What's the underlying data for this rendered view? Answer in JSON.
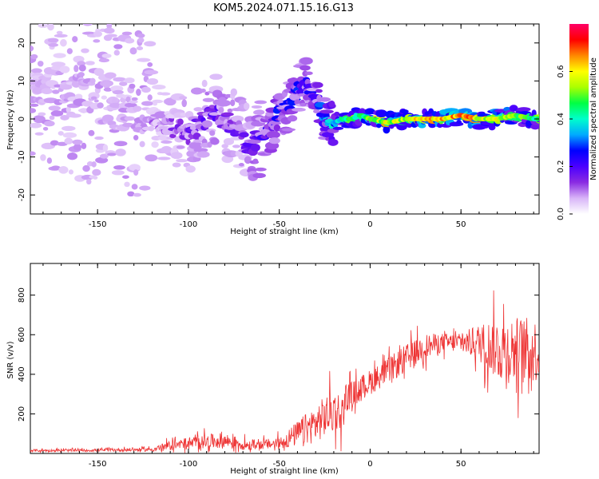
{
  "title": "KOM5.2024.071.15.16.G13",
  "chart_data": [
    {
      "type": "heatmap",
      "xlabel": "Height of straight line (km)",
      "ylabel": "Frequency (Hz)",
      "xlim": [
        -187,
        93
      ],
      "ylim": [
        -25,
        25
      ],
      "xticks": [
        -150,
        -100,
        -50,
        0,
        50
      ],
      "yticks": [
        -20,
        -10,
        0,
        10,
        20
      ],
      "colorbar": {
        "label": "Normalized spectral amplitude",
        "range": [
          0.0,
          0.8
        ],
        "ticks": [
          0.0,
          0.2,
          0.4,
          0.6
        ],
        "colormap": [
          "#ffffff",
          "#d8b4f8",
          "#8a2be2",
          "#4b00ff",
          "#0000ff",
          "#00aaff",
          "#00ffcc",
          "#00ff44",
          "#aaff00",
          "#ffff00",
          "#ff8800",
          "#ff0000",
          "#ff0066"
        ]
      },
      "ridge": {
        "x": [
          -185,
          -150,
          -120,
          -100,
          -85,
          -75,
          -70,
          -65,
          -55,
          -50,
          -45,
          -40,
          -35,
          -30,
          -25,
          -20,
          -15,
          -10,
          -5,
          0,
          10,
          20,
          30,
          40,
          50,
          60,
          70,
          80,
          90
        ],
        "freq": [
          8,
          5,
          0,
          -4,
          2,
          -2,
          -5,
          -7,
          -3,
          2,
          3,
          8,
          10,
          5,
          0,
          -1,
          0,
          0,
          1,
          0,
          -1,
          0,
          0,
          0,
          1,
          0,
          0,
          1,
          0
        ],
        "amplitude": [
          0.05,
          0.08,
          0.1,
          0.15,
          0.18,
          0.15,
          0.15,
          0.18,
          0.22,
          0.25,
          0.22,
          0.25,
          0.2,
          0.25,
          0.3,
          0.35,
          0.4,
          0.45,
          0.45,
          0.5,
          0.55,
          0.55,
          0.6,
          0.6,
          0.65,
          0.6,
          0.55,
          0.5,
          0.45
        ]
      }
    },
    {
      "type": "line",
      "xlabel": "Height of straight line (km)",
      "ylabel": "SNR (v/v)",
      "xlim": [
        -187,
        93
      ],
      "ylim": [
        0,
        960
      ],
      "xticks": [
        -150,
        -100,
        -50,
        0,
        50
      ],
      "yticks": [
        200,
        400,
        600,
        800
      ],
      "color": "#ee3333",
      "x": [
        -187,
        -160,
        -140,
        -120,
        -110,
        -100,
        -90,
        -80,
        -70,
        -60,
        -50,
        -40,
        -30,
        -20,
        -15,
        -14,
        -10,
        0,
        10,
        20,
        30,
        40,
        50,
        60,
        70,
        80,
        93
      ],
      "y": [
        15,
        15,
        18,
        20,
        40,
        50,
        60,
        65,
        45,
        45,
        50,
        100,
        150,
        220,
        200,
        280,
        300,
        360,
        420,
        480,
        540,
        560,
        560,
        560,
        530,
        520,
        520
      ],
      "spread": [
        8,
        8,
        10,
        12,
        30,
        40,
        45,
        50,
        35,
        30,
        40,
        80,
        120,
        140,
        120,
        100,
        80,
        80,
        80,
        90,
        80,
        60,
        60,
        120,
        200,
        220,
        200
      ]
    }
  ]
}
